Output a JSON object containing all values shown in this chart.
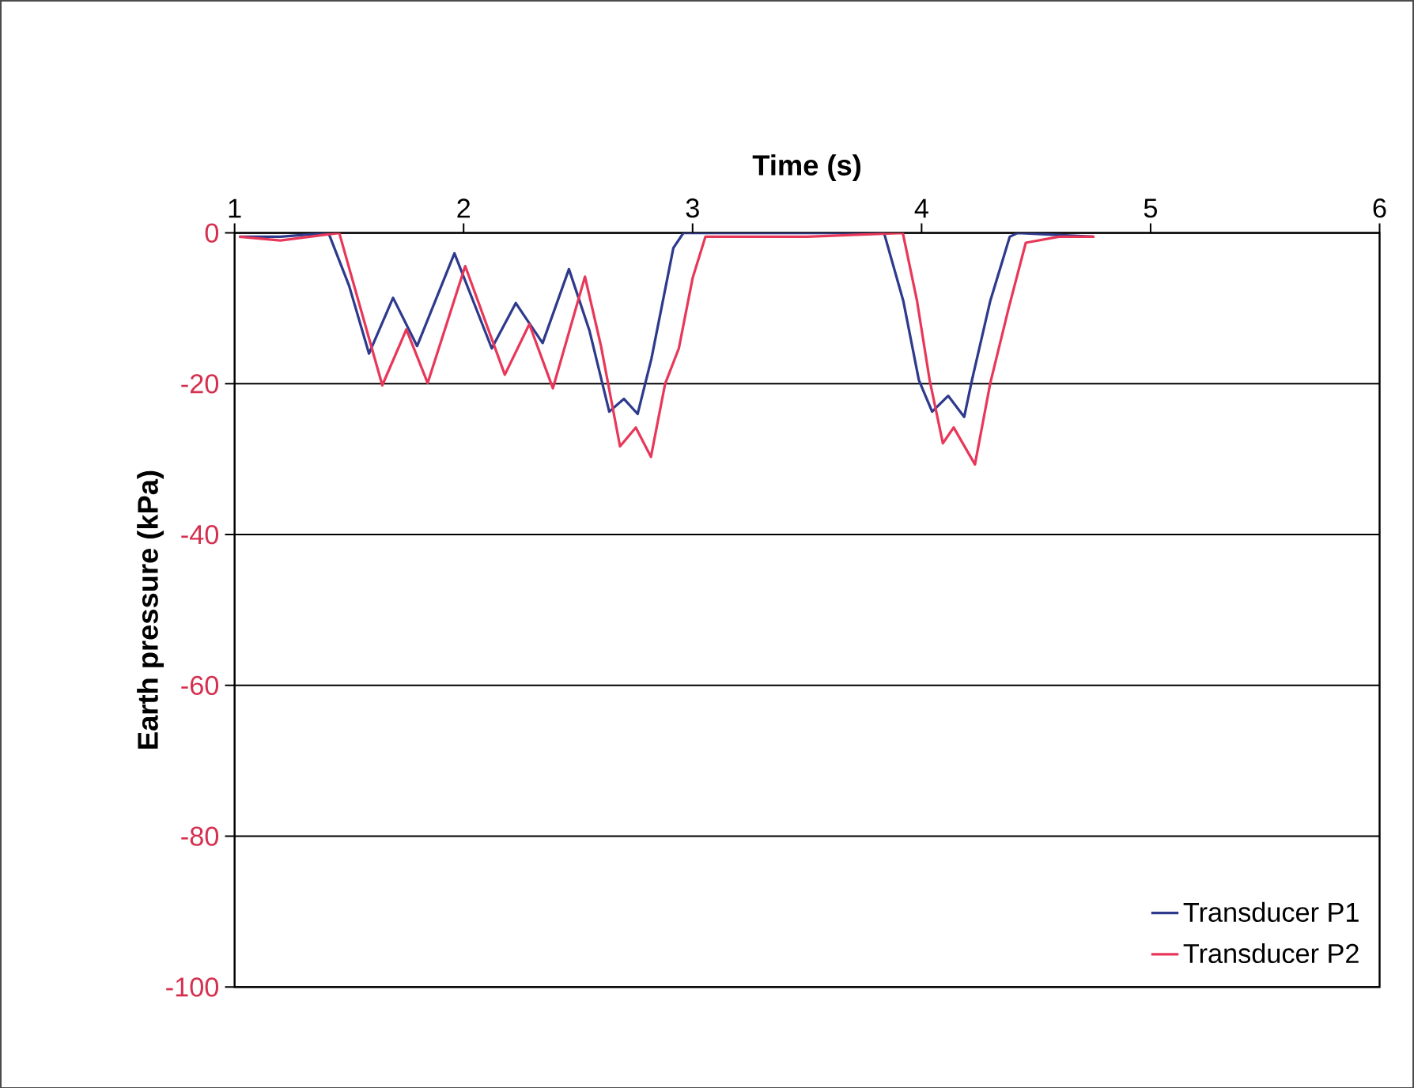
{
  "chart_data": {
    "type": "line",
    "xlabel": "Time (s)",
    "ylabel": "Earth pressure (kPa)",
    "xlim": [
      1,
      6
    ],
    "ylim": [
      -100,
      0
    ],
    "xticks": [
      1,
      2,
      3,
      4,
      5,
      6
    ],
    "yticks": [
      -100,
      -80,
      -60,
      -40,
      -20,
      0
    ],
    "grid": "y",
    "legend": "bottom right",
    "series": [
      {
        "name": "Transducer P1",
        "color": "#2e3a8c",
        "x": [
          1.02,
          1.2,
          1.41,
          1.5,
          1.587,
          1.692,
          1.797,
          1.96,
          2.123,
          2.228,
          2.345,
          2.46,
          2.55,
          2.636,
          2.7,
          2.76,
          2.82,
          2.916,
          2.96,
          3.5,
          3.836,
          3.92,
          3.988,
          4.046,
          4.116,
          4.186,
          4.22,
          4.3,
          4.385,
          4.42,
          4.75
        ],
        "values": [
          -0.5,
          -0.5,
          0,
          -7,
          -16,
          -8.6,
          -15,
          -2.7,
          -15.3,
          -9.3,
          -14.6,
          -4.8,
          -13,
          -23.7,
          -22,
          -24,
          -16.7,
          -2,
          0,
          0,
          0,
          -9,
          -19.5,
          -23.7,
          -21.6,
          -24.4,
          -19.5,
          -9,
          -0.5,
          0,
          -0.5
        ]
      },
      {
        "name": "Transducer P2",
        "color": "#e8385a",
        "x": [
          1.02,
          1.2,
          1.457,
          1.55,
          1.645,
          1.75,
          1.843,
          2.007,
          2.18,
          2.287,
          2.39,
          2.53,
          2.6,
          2.683,
          2.752,
          2.818,
          2.88,
          2.94,
          3.0,
          3.056,
          3.5,
          3.918,
          3.98,
          4.035,
          4.093,
          4.14,
          4.233,
          4.3,
          4.38,
          4.455,
          4.6,
          4.755
        ],
        "values": [
          -0.5,
          -1,
          0,
          -10,
          -20.2,
          -12.8,
          -19.9,
          -4.4,
          -18.8,
          -12.1,
          -20.6,
          -5.8,
          -15,
          -28.3,
          -25.8,
          -29.7,
          -20,
          -15.3,
          -6,
          -0.5,
          -0.5,
          0,
          -9,
          -19.5,
          -27.9,
          -25.8,
          -30.7,
          -19.9,
          -10,
          -1.3,
          -0.5,
          -0.5
        ]
      }
    ]
  }
}
